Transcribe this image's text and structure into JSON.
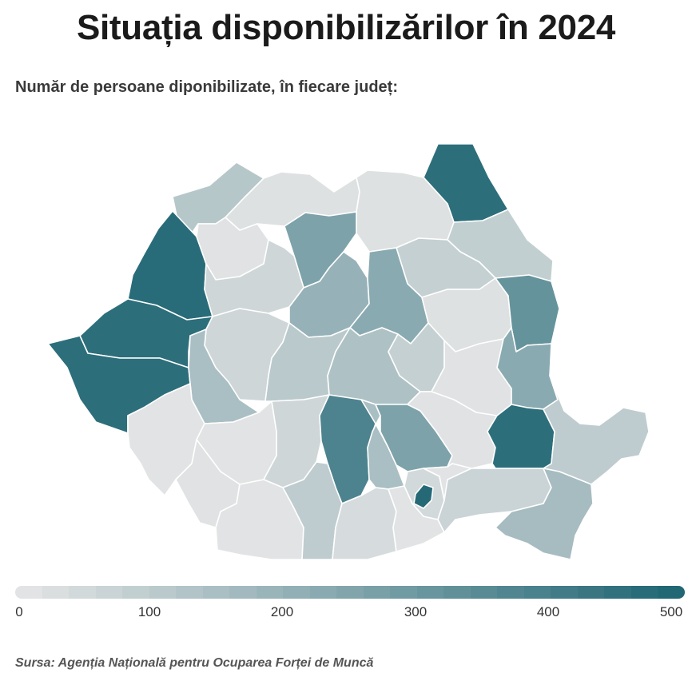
{
  "title": "Situația disponibilizărilor în 2024",
  "subtitle": "Număr de persoane diponibilizate, în fiecare județ:",
  "legend": {
    "min": 0,
    "max": 500,
    "ticks": [
      "0",
      "100",
      "200",
      "300",
      "400",
      "500"
    ],
    "color_low": "#e6e6e6",
    "color_high": "#1d6472",
    "steps": 25
  },
  "source": "Sursa: Agenția Națională pentru Ocuparea Forței de Muncă",
  "map_data": {
    "type": "choropleth",
    "counties": [
      {
        "id": "SM",
        "value": 120
      },
      {
        "id": "MM",
        "value": 20
      },
      {
        "id": "SV",
        "value": 460
      },
      {
        "id": "BT",
        "value": 20
      },
      {
        "id": "BH",
        "value": 470
      },
      {
        "id": "SJ",
        "value": 15
      },
      {
        "id": "BN",
        "value": 260
      },
      {
        "id": "IS",
        "value": 90
      },
      {
        "id": "NT",
        "value": 85
      },
      {
        "id": "AR",
        "value": 460
      },
      {
        "id": "CJ",
        "value": 60
      },
      {
        "id": "MS",
        "value": 200
      },
      {
        "id": "HR",
        "value": 230
      },
      {
        "id": "BC",
        "value": 20
      },
      {
        "id": "VS",
        "value": 320
      },
      {
        "id": "TM",
        "value": 460
      },
      {
        "id": "AB",
        "value": 60
      },
      {
        "id": "HD",
        "value": 150
      },
      {
        "id": "SB",
        "value": 110
      },
      {
        "id": "BV",
        "value": 140
      },
      {
        "id": "CV",
        "value": 85
      },
      {
        "id": "VN",
        "value": 15
      },
      {
        "id": "GL",
        "value": 230
      },
      {
        "id": "CS",
        "value": 10
      },
      {
        "id": "GJ",
        "value": 10
      },
      {
        "id": "VL",
        "value": 60
      },
      {
        "id": "AG",
        "value": 380
      },
      {
        "id": "DB",
        "value": 150
      },
      {
        "id": "PH",
        "value": 260
      },
      {
        "id": "BZ",
        "value": 15
      },
      {
        "id": "BR",
        "value": 460
      },
      {
        "id": "TL",
        "value": 100
      },
      {
        "id": "MH",
        "value": 15
      },
      {
        "id": "DJ",
        "value": 10
      },
      {
        "id": "OT",
        "value": 100
      },
      {
        "id": "TR",
        "value": 40
      },
      {
        "id": "GR",
        "value": 10
      },
      {
        "id": "IF",
        "value": 50
      },
      {
        "id": "B",
        "value": 480
      },
      {
        "id": "CL",
        "value": 70
      },
      {
        "id": "IL",
        "value": 10
      },
      {
        "id": "CT",
        "value": 160
      }
    ]
  }
}
